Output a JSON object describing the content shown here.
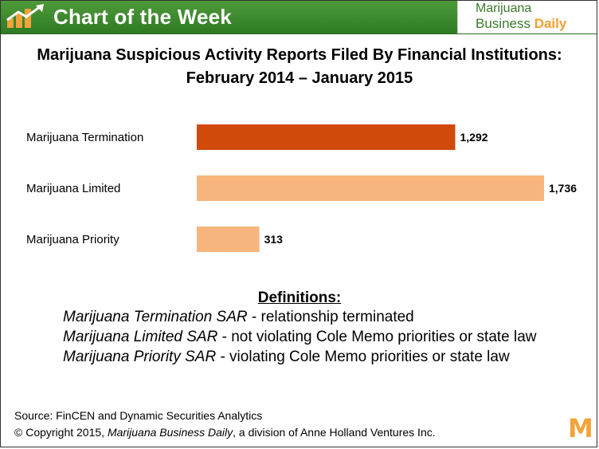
{
  "header": {
    "title": "Chart of the Week",
    "brand_line1": "Marijuana",
    "brand_line2_a": "Business ",
    "brand_line2_b": "Daily"
  },
  "chart_data": {
    "type": "bar",
    "orientation": "horizontal",
    "title": "Marijuana Suspicious Activity Reports Filed By Financial Institutions:",
    "subtitle": "February 2014 – January 2015",
    "categories": [
      "Marijuana Termination",
      "Marijuana Limited",
      "Marijuana Priority"
    ],
    "values": [
      1292,
      1736,
      313
    ],
    "value_labels": [
      "1,292",
      "1,736",
      "313"
    ],
    "colors": [
      "#d04a0c",
      "#f6b57c",
      "#f6b57c"
    ],
    "xlim": [
      0,
      1736
    ],
    "grid": false,
    "legend": "none"
  },
  "definitions": {
    "heading": "Definitions:",
    "items": [
      {
        "term": "Marijuana Termination SAR",
        "desc": "  - relationship terminated"
      },
      {
        "term": "Marijuana Limited SAR",
        "desc": " - not violating Cole Memo priorities or state law"
      },
      {
        "term": "Marijuana Priority SAR",
        "desc": " - violating Cole Memo priorities or state law"
      }
    ]
  },
  "footer": {
    "source": "Source: FinCEN and Dynamic Securities Analytics",
    "copyright_a": "© Copyright 2015, ",
    "copyright_pub": "Marijuana Business Daily",
    "copyright_b": ", a division of Anne Holland Ventures Inc.",
    "mark": "M"
  }
}
